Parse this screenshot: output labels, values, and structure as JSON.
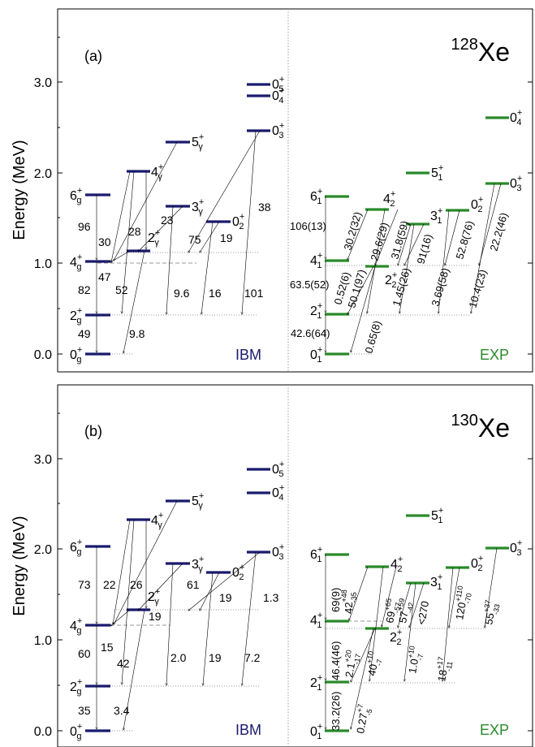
{
  "axis_label": "Energy (MeV)",
  "colors": {
    "ibm": "#1a1a6e",
    "exp": "#2a8a2a",
    "frame": "#000000"
  },
  "panels": [
    {
      "id": "a",
      "tag": "(a)",
      "nucleus_mass": "128",
      "nucleus_symbol": "Xe",
      "ibm_label": "IBM",
      "exp_label": "EXP",
      "ticks": [
        "0.0",
        "1.0",
        "2.0",
        "3.0"
      ],
      "ibm_levels": [
        {
          "name": "0g",
          "sup": "+",
          "sub": "g",
          "base": "0",
          "E": 0.0
        },
        {
          "name": "2g",
          "sup": "+",
          "sub": "g",
          "base": "2",
          "E": 0.42
        },
        {
          "name": "4g",
          "sup": "+",
          "sub": "g",
          "base": "4",
          "E": 1.02
        },
        {
          "name": "6g",
          "sup": "+",
          "sub": "g",
          "base": "6",
          "E": 1.75
        },
        {
          "name": "2γ",
          "sup": "+",
          "sub": "γ",
          "base": "2",
          "E": 1.14
        },
        {
          "name": "4γ",
          "sup": "+",
          "sub": "γ",
          "base": "4",
          "E": 2.02
        },
        {
          "name": "3γ",
          "sup": "+",
          "sub": "γ",
          "base": "3",
          "E": 1.63
        },
        {
          "name": "5γ",
          "sup": "+",
          "sub": "γ",
          "base": "5",
          "E": 2.34
        },
        {
          "name": "02",
          "sup": "+",
          "sub": "2",
          "base": "0",
          "E": 1.46
        },
        {
          "name": "03",
          "sup": "+",
          "sub": "3",
          "base": "0",
          "E": 2.46
        },
        {
          "name": "04",
          "sup": "+",
          "sub": "4",
          "base": "0",
          "E": 2.83
        },
        {
          "name": "05",
          "sup": "+",
          "sub": "5",
          "base": "0",
          "E": 2.96
        }
      ],
      "ibm_values": [
        "49",
        "82",
        "96",
        "47",
        "30",
        "28",
        "52",
        "9.8",
        "23",
        "75",
        "9.6",
        "19",
        "16",
        "38",
        "101"
      ],
      "exp_levels": [
        {
          "base": "0",
          "sup": "+",
          "sub": "1",
          "E": 0.0
        },
        {
          "base": "2",
          "sup": "+",
          "sub": "1",
          "E": 0.44
        },
        {
          "base": "4",
          "sup": "+",
          "sub": "1",
          "E": 1.03
        },
        {
          "base": "6",
          "sup": "+",
          "sub": "1",
          "E": 1.74
        },
        {
          "base": "2",
          "sup": "+",
          "sub": "2",
          "E": 0.97
        },
        {
          "base": "4",
          "sup": "+",
          "sub": "2",
          "E": 1.6
        },
        {
          "base": "3",
          "sup": "+",
          "sub": "1",
          "E": 1.43
        },
        {
          "base": "5",
          "sup": "+",
          "sub": "1",
          "E": 2.0
        },
        {
          "base": "0",
          "sup": "+",
          "sub": "2",
          "E": 1.58
        },
        {
          "base": "0",
          "sup": "+",
          "sub": "3",
          "E": 1.88
        },
        {
          "base": "0",
          "sup": "+",
          "sub": "4",
          "E": 2.6
        }
      ],
      "exp_values": [
        "42.6(64)",
        "63.5(52)",
        "106(13)",
        "0.52(6)",
        "30.2(32)",
        "50.1(97)",
        "29.6(29)",
        "0.65(8)",
        "31.8(59)",
        "1.45(26)",
        "91(16)",
        "3.69(58)",
        "52.8(76)",
        "10.4(23)",
        "22.2(46)"
      ]
    },
    {
      "id": "b",
      "tag": "(b)",
      "nucleus_mass": "130",
      "nucleus_symbol": "Xe",
      "ibm_label": "IBM",
      "exp_label": "EXP",
      "ticks": [
        "0.0",
        "1.0",
        "2.0",
        "3.0"
      ],
      "ibm_levels": [
        {
          "base": "0",
          "sup": "+",
          "sub": "g",
          "E": 0.0
        },
        {
          "base": "2",
          "sup": "+",
          "sub": "g",
          "E": 0.49
        },
        {
          "base": "4",
          "sup": "+",
          "sub": "g",
          "E": 1.16
        },
        {
          "base": "6",
          "sup": "+",
          "sub": "g",
          "E": 2.02
        },
        {
          "base": "2",
          "sup": "+",
          "sub": "γ",
          "E": 1.33
        },
        {
          "base": "4",
          "sup": "+",
          "sub": "γ",
          "E": 2.32
        },
        {
          "base": "3",
          "sup": "+",
          "sub": "γ",
          "E": 1.84
        },
        {
          "base": "5",
          "sup": "+",
          "sub": "γ",
          "E": 2.53
        },
        {
          "base": "0",
          "sup": "+",
          "sub": "2",
          "E": 1.74
        },
        {
          "base": "0",
          "sup": "+",
          "sub": "3",
          "E": 1.96
        },
        {
          "base": "0",
          "sup": "+",
          "sub": "4",
          "E": 2.61
        },
        {
          "base": "0",
          "sup": "+",
          "sub": "5",
          "E": 2.88
        }
      ],
      "ibm_values": [
        "35",
        "60",
        "73",
        "15",
        "22",
        "26",
        "42",
        "3.4",
        "19",
        "61",
        "2.0",
        "19",
        "19",
        "1.3",
        "7.2"
      ],
      "exp_levels": [
        {
          "base": "0",
          "sup": "+",
          "sub": "1",
          "E": 0.0
        },
        {
          "base": "2",
          "sup": "+",
          "sub": "1",
          "E": 0.54
        },
        {
          "base": "4",
          "sup": "+",
          "sub": "1",
          "E": 1.2
        },
        {
          "base": "6",
          "sup": "+",
          "sub": "1",
          "E": 1.94
        },
        {
          "base": "2",
          "sup": "+",
          "sub": "2",
          "E": 1.12
        },
        {
          "base": "4",
          "sup": "+",
          "sub": "2",
          "E": 1.81
        },
        {
          "base": "3",
          "sup": "+",
          "sub": "1",
          "E": 1.63
        },
        {
          "base": "5",
          "sup": "+",
          "sub": "1",
          "E": 2.37
        },
        {
          "base": "0",
          "sup": "+",
          "sub": "2",
          "E": 1.79
        },
        {
          "base": "0",
          "sup": "+",
          "sub": "3",
          "E": 2.02
        }
      ],
      "exp_values": [
        {
          "m": "33.2(26)"
        },
        {
          "m": "46.4(46)"
        },
        {
          "m": "69(9)"
        },
        {
          "m": "0.27",
          "sup": "+7",
          "sub": "-5"
        },
        {
          "m": "2.1",
          "sup": "+20",
          "sub": "-17"
        },
        {
          "m": "42",
          "sup": "+48",
          "sub": "-35"
        },
        {
          "m": "40",
          "sup": "+10",
          "sub": "-7"
        },
        {
          "m": "69",
          "sup": "+65",
          "sub": "-57"
        },
        {
          "m": "57",
          "sup": "+59",
          "sub": "-42"
        },
        {
          "m": "1.0",
          "sup": "+10",
          "sub": "-7"
        },
        {
          "m": "<270"
        },
        {
          "m": "18",
          "sup": "+17",
          "sub": "-11"
        },
        {
          "m": "120",
          "sup": "+110",
          "sub": "-70"
        },
        {
          "m": "55",
          "sup": "+37",
          "sub": "-33"
        }
      ]
    }
  ]
}
